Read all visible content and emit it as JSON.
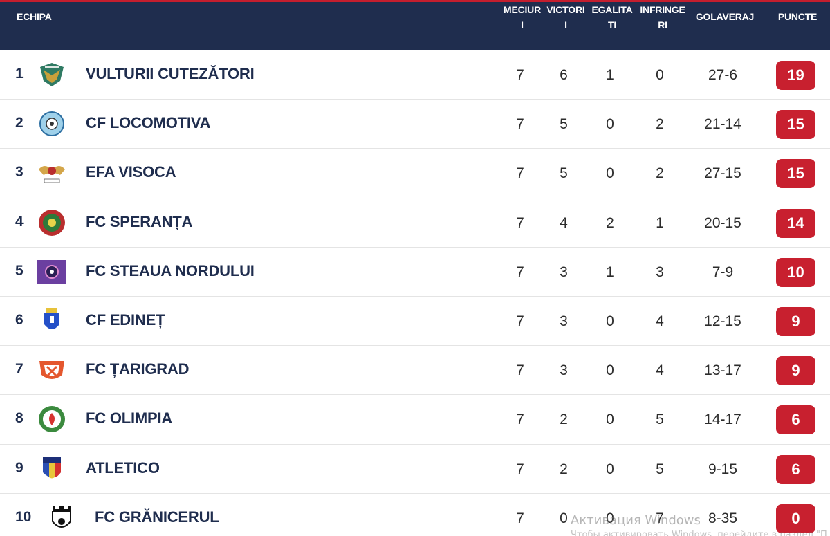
{
  "header": {
    "team": "ECHIPA",
    "meciuri": [
      "MECIUR",
      "I"
    ],
    "victorii": [
      "VICTORI",
      "I"
    ],
    "egalitati": [
      "EGALITA",
      "TI"
    ],
    "infrangeri": [
      "INFRINGE",
      "RI"
    ],
    "golaveraj": "GOLAVERAJ",
    "puncte": "PUNCTE"
  },
  "colors": {
    "header_bg": "#1f2d4e",
    "accent_red": "#c8202f",
    "team_text": "#1f2d4e"
  },
  "rows": [
    {
      "pos": "1",
      "team": "VULTURII CUTEZĂTORI",
      "logo": "eagle-crest-icon",
      "m": "7",
      "v": "6",
      "e": "1",
      "i": "0",
      "g": "27-6",
      "p": "19"
    },
    {
      "pos": "2",
      "team": "CF LOCOMOTIVA",
      "logo": "round-ball-crest-icon",
      "m": "7",
      "v": "5",
      "e": "0",
      "i": "2",
      "g": "21-14",
      "p": "15"
    },
    {
      "pos": "3",
      "team": "EFA VISOCA",
      "logo": "winged-crest-icon",
      "m": "7",
      "v": "5",
      "e": "0",
      "i": "2",
      "g": "27-15",
      "p": "15"
    },
    {
      "pos": "4",
      "team": "FC SPERANȚA",
      "logo": "green-red-round-crest-icon",
      "m": "7",
      "v": "4",
      "e": "2",
      "i": "1",
      "g": "20-15",
      "p": "14"
    },
    {
      "pos": "5",
      "team": "FC STEAUA NORDULUI",
      "logo": "purple-star-badge-icon",
      "m": "7",
      "v": "3",
      "e": "1",
      "i": "3",
      "g": "7-9",
      "p": "10"
    },
    {
      "pos": "6",
      "team": "CF EDINEȚ",
      "logo": "blue-shield-crest-icon",
      "m": "7",
      "v": "3",
      "e": "0",
      "i": "4",
      "g": "12-15",
      "p": "9"
    },
    {
      "pos": "7",
      "team": "FC ȚARIGRAD",
      "logo": "orange-shield-crest-icon",
      "m": "7",
      "v": "3",
      "e": "0",
      "i": "4",
      "g": "13-17",
      "p": "9"
    },
    {
      "pos": "8",
      "team": "FC OLIMPIA",
      "logo": "laurel-round-crest-icon",
      "m": "7",
      "v": "2",
      "e": "0",
      "i": "5",
      "g": "14-17",
      "p": "6"
    },
    {
      "pos": "9",
      "team": "ATLETICO",
      "logo": "tricolor-shield-crest-icon",
      "m": "7",
      "v": "2",
      "e": "0",
      "i": "5",
      "g": "9-15",
      "p": "6"
    },
    {
      "pos": "10",
      "team": "FC GRĂNICERUL",
      "logo": "tower-shield-crest-icon",
      "m": "7",
      "v": "0",
      "e": "0",
      "i": "7",
      "g": "8-35",
      "p": "0"
    }
  ],
  "watermark": {
    "line1": "Активация Windows",
    "line2": "Чтобы активировать Windows, перейдите в раздел \"П"
  }
}
